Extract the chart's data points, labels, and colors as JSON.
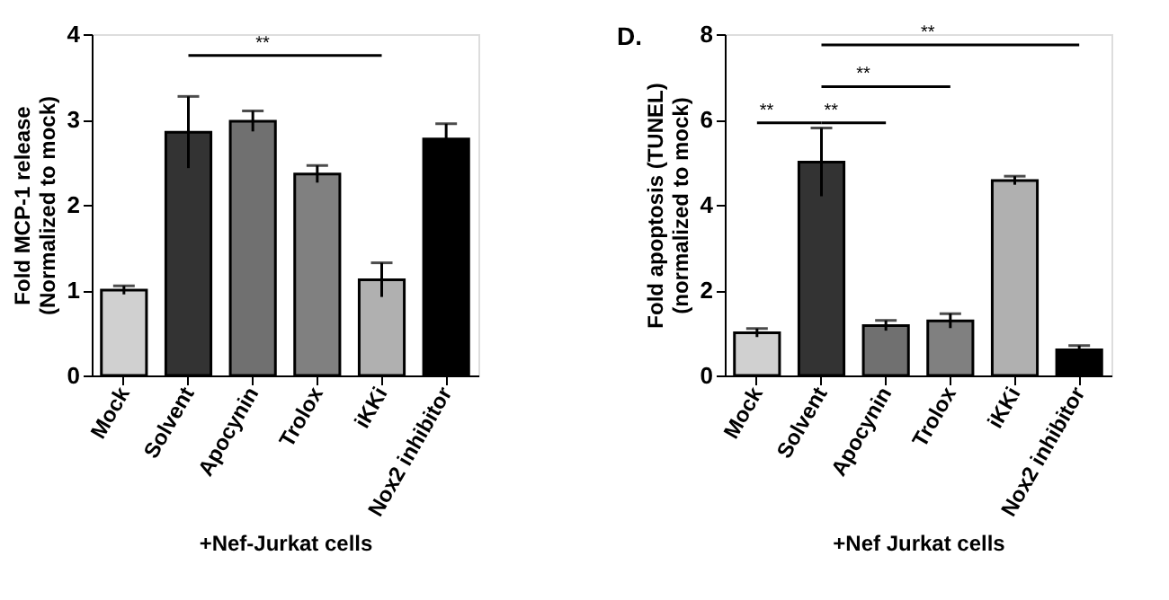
{
  "chart_data": [
    {
      "type": "bar",
      "xlabel": "+Nef-Jurkat cells",
      "ylabel": "Fold MCP-1 release\n(Normalized to mock)",
      "categories": [
        "Mock",
        "Solvent",
        "Apocynin",
        "Trolox",
        "iKKi",
        "Nox2 inhibitor"
      ],
      "values": [
        1.0,
        2.85,
        2.98,
        2.36,
        1.12,
        2.77
      ],
      "errors": [
        0.05,
        0.42,
        0.12,
        0.1,
        0.2,
        0.18
      ],
      "colors": [
        "#d0d0d0",
        "#333333",
        "#707070",
        "#808080",
        "#b0b0b0",
        "#000000"
      ],
      "ylim": [
        0,
        4
      ],
      "yticks": [
        0,
        1,
        2,
        3,
        4
      ],
      "grid": false,
      "annotations": [
        "**"
      ]
    },
    {
      "type": "bar",
      "xlabel": "+Nef Jurkat cells",
      "ylabel": "Fold apoptosis (TUNEL)\n(normalized to mock)",
      "categories": [
        "Mock",
        "Solvent",
        "Apocynin",
        "Trolox",
        "iKKi",
        "Nox2 inhibitor"
      ],
      "values": [
        1.0,
        5.0,
        1.17,
        1.28,
        4.57,
        0.6
      ],
      "errors": [
        0.1,
        0.8,
        0.12,
        0.17,
        0.1,
        0.1
      ],
      "colors": [
        "#c8c8c8",
        "#262626",
        "#666666",
        "#777777",
        "#aaaaaa",
        "#000000"
      ],
      "ylim": [
        0,
        8
      ],
      "yticks": [
        0,
        2,
        4,
        6,
        8
      ],
      "grid": false,
      "annotations": [
        "D.",
        "**",
        "**",
        "**",
        "**"
      ]
    }
  ]
}
